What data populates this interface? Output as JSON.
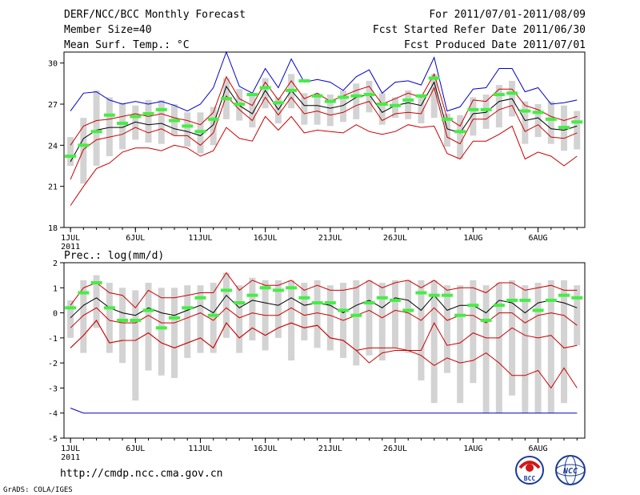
{
  "header": {
    "left_line1": "DERF/NCC/BCC Monthly Forecast",
    "left_line2": "Member Size=40",
    "left_line3": "Mean Surf. Temp.: °C",
    "right_line1": "For 2011/07/01-2011/08/09",
    "right_line2": "Fcst Started Refer Date 2011/06/30",
    "right_line3": "Fcst Produced Date 2011/07/01"
  },
  "prec_label": "Prec.: log(mm/d)",
  "footer": {
    "url": "http://cmdp.ncc.cma.gov.cn",
    "credit": "GrADS: COLA/IGES",
    "logo1_text": "BCC",
    "logo2_text": "NCC"
  },
  "colors": {
    "max_min": "#0000cc",
    "percentile": "#cc0000",
    "mean": "#000000",
    "box": "#d3d3d3",
    "marker": "#44ee44"
  },
  "x_ticks": [
    {
      "day": 1,
      "label": "1JUL",
      "sub": "2011"
    },
    {
      "day": 6,
      "label": "6JUL"
    },
    {
      "day": 11,
      "label": "11JUL"
    },
    {
      "day": 16,
      "label": "16JUL"
    },
    {
      "day": 21,
      "label": "21JUL"
    },
    {
      "day": 26,
      "label": "26JUL"
    },
    {
      "day": 32,
      "label": "1AUG"
    },
    {
      "day": 37,
      "label": "6AUG"
    }
  ],
  "chart_data": [
    {
      "type": "line",
      "title": "Mean Surf. Temp.: °C",
      "ylim": [
        18,
        30.8
      ],
      "yticks": [
        18,
        21,
        24,
        27,
        30
      ],
      "x": [
        1,
        2,
        3,
        4,
        5,
        6,
        7,
        8,
        9,
        10,
        11,
        12,
        13,
        14,
        15,
        16,
        17,
        18,
        19,
        20,
        21,
        22,
        23,
        24,
        25,
        26,
        27,
        28,
        29,
        30,
        31,
        32,
        33,
        34,
        35,
        36,
        37,
        38,
        39,
        40
      ],
      "series": [
        {
          "name": "max",
          "values": [
            26.5,
            27.8,
            27.9,
            27.3,
            27.0,
            27.2,
            27.0,
            27.2,
            26.9,
            26.5,
            27.0,
            28.2,
            30.8,
            28.3,
            27.8,
            29.6,
            28.2,
            30.3,
            28.6,
            28.8,
            28.6,
            28.0,
            29.0,
            29.5,
            27.8,
            28.6,
            28.7,
            28.4,
            30.4,
            26.5,
            26.8,
            28.1,
            28.2,
            29.6,
            29.6,
            27.9,
            28.2,
            27.0,
            27.1,
            27.3
          ]
        },
        {
          "name": "p75",
          "values": [
            24.0,
            25.4,
            25.8,
            25.9,
            26.1,
            26.3,
            26.1,
            26.3,
            26.0,
            25.8,
            25.5,
            26.4,
            29.0,
            27.4,
            26.9,
            28.6,
            27.3,
            28.7,
            27.4,
            27.8,
            27.2,
            27.6,
            28.0,
            28.3,
            27.0,
            27.4,
            27.8,
            27.5,
            29.2,
            26.0,
            25.4,
            27.3,
            27.2,
            28.1,
            28.1,
            26.9,
            26.6,
            26.1,
            25.8,
            26.1
          ]
        },
        {
          "name": "mean",
          "values": [
            22.8,
            24.5,
            25.1,
            25.3,
            25.3,
            25.7,
            25.5,
            25.6,
            25.2,
            25.0,
            24.7,
            25.5,
            28.3,
            26.9,
            26.3,
            28.0,
            26.6,
            28.0,
            26.9,
            26.9,
            26.7,
            26.9,
            27.5,
            27.7,
            26.4,
            26.9,
            27.1,
            26.9,
            28.6,
            25.2,
            24.9,
            26.3,
            26.4,
            27.2,
            27.4,
            25.8,
            26.0,
            25.2,
            25.1,
            25.4
          ]
        },
        {
          "name": "p25",
          "values": [
            21.5,
            23.7,
            24.4,
            24.6,
            24.8,
            25.3,
            24.9,
            25.2,
            24.7,
            24.7,
            24.0,
            24.9,
            27.6,
            26.6,
            25.8,
            27.5,
            26.2,
            27.5,
            26.3,
            26.5,
            26.2,
            26.4,
            26.9,
            27.2,
            25.8,
            26.3,
            26.4,
            26.3,
            28.2,
            24.6,
            24.1,
            25.9,
            25.9,
            26.6,
            26.9,
            25.0,
            25.5,
            24.6,
            24.5,
            24.9
          ]
        },
        {
          "name": "min",
          "values": [
            19.6,
            21.0,
            22.3,
            22.7,
            23.5,
            23.8,
            23.8,
            23.6,
            24.0,
            23.8,
            23.2,
            23.6,
            25.3,
            24.5,
            24.3,
            26.1,
            25.1,
            26.1,
            24.9,
            25.1,
            25.0,
            24.9,
            25.5,
            25.0,
            24.8,
            25.0,
            25.5,
            25.3,
            25.4,
            23.4,
            23.0,
            24.3,
            24.3,
            24.8,
            25.4,
            23.0,
            23.5,
            23.2,
            22.5,
            23.2
          ]
        },
        {
          "name": "box_high",
          "values": [
            24.6,
            26.0,
            28.0,
            27.5,
            27.1,
            26.9,
            27.3,
            27.3,
            27.0,
            26.4,
            26.4,
            26.8,
            28.9,
            28.1,
            27.8,
            28.9,
            27.5,
            29.2,
            27.8,
            27.8,
            27.7,
            28.0,
            28.5,
            28.7,
            27.8,
            27.5,
            28.0,
            27.6,
            29.2,
            26.3,
            26.2,
            27.5,
            27.7,
            28.4,
            28.7,
            27.2,
            27.0,
            27.2,
            26.9,
            26.5
          ]
        },
        {
          "name": "box_low",
          "values": [
            22.5,
            21.2,
            22.5,
            23.2,
            23.7,
            24.4,
            24.2,
            24.1,
            24.7,
            23.9,
            23.4,
            24.0,
            25.9,
            25.8,
            25.3,
            26.7,
            25.6,
            26.7,
            25.5,
            25.5,
            25.4,
            25.7,
            25.9,
            26.4,
            25.5,
            26.0,
            25.9,
            25.6,
            26.0,
            23.9,
            23.0,
            24.7,
            25.2,
            25.3,
            26.1,
            24.1,
            24.6,
            24.1,
            23.6,
            23.7
          ]
        },
        {
          "name": "observed",
          "values": [
            23.2,
            24.0,
            25.0,
            26.2,
            25.6,
            26.1,
            26.3,
            26.6,
            25.8,
            25.4,
            25.0,
            25.9,
            27.4,
            27.0,
            27.7,
            28.2,
            27.1,
            28.0,
            28.7,
            27.6,
            27.2,
            27.5,
            27.6,
            27.7,
            27.0,
            26.9,
            27.3,
            27.6,
            28.9,
            25.9,
            25.0,
            26.6,
            26.6,
            27.7,
            27.8,
            26.5,
            26.4,
            25.9,
            25.3,
            25.7
          ]
        }
      ]
    },
    {
      "type": "line",
      "title": "Prec.: log(mm/d)",
      "ylim": [
        -5,
        2
      ],
      "yticks": [
        -5,
        -4,
        -3,
        -2,
        -1,
        0,
        1,
        2
      ],
      "x": [
        1,
        2,
        3,
        4,
        5,
        6,
        7,
        8,
        9,
        10,
        11,
        12,
        13,
        14,
        15,
        16,
        17,
        18,
        19,
        20,
        21,
        22,
        23,
        24,
        25,
        26,
        27,
        28,
        29,
        30,
        31,
        32,
        33,
        34,
        35,
        36,
        37,
        38,
        39,
        40
      ],
      "series": [
        {
          "name": "max",
          "values": [
            -3.8,
            -4,
            -4,
            -4,
            -4,
            -4,
            -4,
            -4,
            -4,
            -4,
            -4,
            -4,
            -4,
            -4,
            -4,
            -4,
            -4,
            -4,
            -4,
            -4,
            -4,
            -4,
            -4,
            -4,
            -4,
            -4,
            -4,
            -4,
            -4,
            -4,
            -4,
            -4,
            -4,
            -4,
            -4,
            -4,
            -4,
            -4,
            -4,
            -4
          ]
        },
        {
          "name": "p75",
          "values": [
            0.3,
            1.0,
            1.2,
            0.8,
            0.7,
            0.2,
            0.9,
            0.6,
            0.6,
            0.7,
            0.8,
            0.8,
            1.6,
            0.9,
            1.3,
            1.1,
            1.1,
            1.3,
            0.9,
            1.1,
            0.9,
            0.9,
            1.0,
            1.3,
            1.0,
            1.2,
            1.3,
            1.0,
            1.3,
            0.9,
            1.0,
            1.0,
            0.8,
            1.2,
            1.2,
            0.9,
            1.0,
            1.1,
            0.9,
            0.9
          ]
        },
        {
          "name": "mean",
          "values": [
            -0.2,
            0.3,
            0.6,
            0.2,
            0.0,
            -0.1,
            0.2,
            0.0,
            -0.1,
            0.1,
            0.3,
            0.0,
            0.7,
            0.2,
            0.5,
            0.4,
            0.3,
            0.6,
            0.3,
            0.4,
            0.3,
            0.0,
            0.3,
            0.5,
            0.2,
            0.6,
            0.5,
            0.1,
            0.7,
            0.1,
            0.3,
            0.3,
            0.0,
            0.5,
            0.4,
            0.0,
            0.4,
            0.5,
            0.4,
            0.2
          ]
        },
        {
          "name": "p25",
          "values": [
            -0.6,
            -0.1,
            0.2,
            -0.3,
            -0.4,
            -0.4,
            -0.1,
            -0.4,
            -0.4,
            -0.2,
            0.0,
            -0.3,
            0.2,
            -0.2,
            0.0,
            -0.1,
            -0.1,
            0.2,
            -0.1,
            0.0,
            -0.1,
            -0.3,
            -0.1,
            0.1,
            -0.2,
            0.1,
            0.0,
            -0.3,
            0.2,
            -0.3,
            -0.1,
            -0.1,
            -0.4,
            0.0,
            0.0,
            -0.4,
            -0.1,
            0.0,
            -0.1,
            -0.5
          ]
        },
        {
          "name": "min",
          "values": [
            -1.4,
            -0.9,
            -0.3,
            -1.2,
            -1.1,
            -1.1,
            -0.8,
            -1.2,
            -1.4,
            -1.2,
            -1.0,
            -1.4,
            -0.4,
            -1.0,
            -0.6,
            -0.9,
            -0.6,
            -0.4,
            -0.6,
            -0.5,
            -1.0,
            -1.1,
            -1.5,
            -1.4,
            -1.4,
            -1.4,
            -1.5,
            -1.5,
            -0.4,
            -1.3,
            -1.2,
            -0.8,
            -1.0,
            -1.0,
            -0.6,
            -0.9,
            -1.0,
            -0.9,
            -1.4,
            -1.3
          ]
        },
        {
          "name": "lowest",
          "values": [
            -1.4,
            -0.9,
            -0.3,
            -1.2,
            -1.1,
            -1.1,
            -0.8,
            -1.2,
            -1.4,
            -1.2,
            -1.0,
            -1.4,
            -0.4,
            -1.0,
            -0.6,
            -0.9,
            -0.6,
            -0.4,
            -0.6,
            -0.5,
            -1.0,
            -1.1,
            -1.5,
            -2.0,
            -1.6,
            -1.5,
            -1.5,
            -1.7,
            -2.1,
            -1.8,
            -2.0,
            -1.9,
            -1.6,
            -2.0,
            -2.5,
            -2.5,
            -2.3,
            -3.0,
            -2.2,
            -3.0
          ]
        },
        {
          "name": "box_high",
          "values": [
            0.5,
            1.3,
            1.5,
            1.2,
            1.0,
            0.9,
            1.2,
            1.0,
            1.0,
            1.1,
            1.1,
            1.2,
            1.6,
            1.1,
            1.4,
            1.3,
            1.3,
            1.3,
            1.2,
            1.3,
            1.1,
            1.2,
            1.3,
            1.3,
            1.2,
            1.3,
            1.3,
            1.3,
            1.3,
            1.1,
            1.1,
            1.3,
            1.1,
            1.2,
            1.3,
            1.1,
            1.2,
            1.3,
            1.3,
            1.1
          ]
        },
        {
          "name": "box_low",
          "values": [
            -1.0,
            -1.6,
            -0.6,
            -1.6,
            -2.0,
            -3.5,
            -2.3,
            -2.5,
            -2.6,
            -1.8,
            -1.6,
            -1.6,
            -1.0,
            -1.6,
            -1.1,
            -1.5,
            -1.0,
            -1.9,
            -1.1,
            -1.4,
            -1.5,
            -1.8,
            -2.1,
            -1.7,
            -1.9,
            -1.4,
            -1.6,
            -2.7,
            -3.6,
            -2.4,
            -3.6,
            -2.8,
            -4.0,
            -4.0,
            -3.3,
            -4.0,
            -4.0,
            -4.0,
            -3.6,
            -1.3
          ]
        },
        {
          "name": "observed",
          "values": [
            0.2,
            0.8,
            1.2,
            0.2,
            -0.3,
            -0.3,
            0.1,
            -0.6,
            -0.2,
            0.2,
            0.6,
            -0.1,
            0.9,
            0.4,
            0.7,
            1.0,
            0.9,
            1.0,
            0.6,
            0.4,
            0.4,
            0.1,
            -0.1,
            0.4,
            0.6,
            0.5,
            0.1,
            0.8,
            0.7,
            0.7,
            -0.1,
            0.3,
            -0.3,
            0.3,
            0.5,
            0.5,
            0.1,
            0.5,
            0.7,
            0.6
          ]
        }
      ]
    }
  ]
}
